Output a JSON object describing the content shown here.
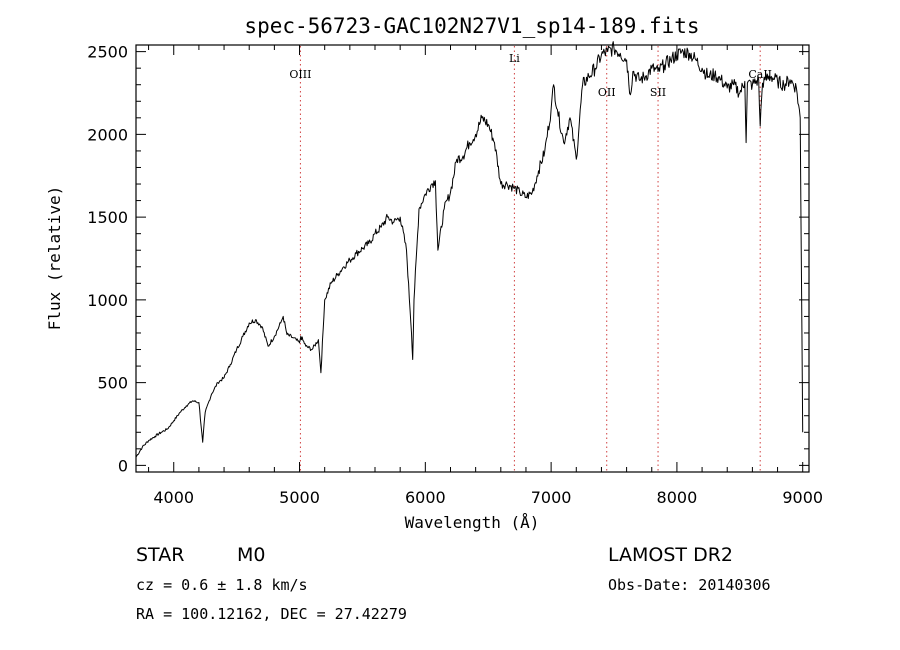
{
  "chart_data": {
    "type": "line",
    "title": "spec-56723-GAC102N27V1_sp14-189.fits",
    "xlabel": "Wavelength (Å)",
    "ylabel": "Flux (relative)",
    "xlim": [
      3700,
      9050
    ],
    "ylim": [
      -40,
      2540
    ],
    "xticks": [
      4000,
      5000,
      6000,
      7000,
      8000,
      9000
    ],
    "yticks": [
      0,
      500,
      1000,
      1500,
      2000,
      2500
    ],
    "grid": false,
    "line_color": "#000000",
    "marker_color": "#d04040",
    "lines": [
      {
        "label": "OIII",
        "x": 5007
      },
      {
        "label": "Li",
        "x": 6708
      },
      {
        "label": "OII",
        "x": 7442
      },
      {
        "label": "SII",
        "x": 7850
      },
      {
        "label": "CaII",
        "x": 8662
      }
    ],
    "series": [
      {
        "x": [
          3700,
          3750,
          3800,
          3850,
          3900,
          3950,
          4000,
          4050,
          4100,
          4150,
          4200,
          4230,
          4250,
          4300,
          4350,
          4400,
          4450,
          4500,
          4550,
          4600,
          4650,
          4700,
          4750,
          4800,
          4850,
          4870,
          4900,
          4950,
          5000,
          5010,
          5050,
          5100,
          5150,
          5170,
          5200,
          5250,
          5300,
          5350,
          5400,
          5450,
          5500,
          5550,
          5600,
          5650,
          5700,
          5750,
          5800,
          5850,
          5890,
          5900,
          5910,
          5950,
          6000,
          6050,
          6080,
          6100,
          6150,
          6200,
          6250,
          6300,
          6350,
          6400,
          6450,
          6500,
          6550,
          6600,
          6650,
          6700,
          6750,
          6800,
          6850,
          6900,
          6950,
          7000,
          7020,
          7050,
          7100,
          7150,
          7200,
          7250,
          7300,
          7350,
          7400,
          7450,
          7500,
          7550,
          7600,
          7630,
          7650,
          7700,
          7750,
          7800,
          7850,
          7900,
          7950,
          8000,
          8050,
          8100,
          8150,
          8200,
          8250,
          8300,
          8350,
          8400,
          8450,
          8500,
          8540,
          8550,
          8560,
          8600,
          8650,
          8662,
          8680,
          8700,
          8750,
          8800,
          8850,
          8900,
          8950,
          8980,
          9000
        ],
        "y": [
          50,
          110,
          150,
          175,
          200,
          220,
          270,
          320,
          360,
          390,
          380,
          140,
          320,
          430,
          500,
          530,
          610,
          700,
          780,
          860,
          880,
          840,
          720,
          780,
          860,
          900,
          790,
          770,
          740,
          780,
          720,
          700,
          760,
          560,
          1000,
          1100,
          1150,
          1200,
          1240,
          1280,
          1310,
          1340,
          1400,
          1440,
          1500,
          1470,
          1500,
          1300,
          800,
          640,
          1000,
          1550,
          1640,
          1700,
          1720,
          1300,
          1550,
          1650,
          1850,
          1870,
          1950,
          2000,
          2100,
          2060,
          1950,
          1700,
          1700,
          1680,
          1650,
          1620,
          1650,
          1780,
          1900,
          2150,
          2300,
          2150,
          1950,
          2100,
          1850,
          2300,
          2350,
          2400,
          2480,
          2500,
          2520,
          2490,
          2450,
          2240,
          2380,
          2330,
          2350,
          2400,
          2380,
          2420,
          2450,
          2480,
          2500,
          2490,
          2450,
          2400,
          2350,
          2360,
          2330,
          2280,
          2300,
          2250,
          2320,
          1950,
          2310,
          2300,
          2330,
          2050,
          2310,
          2330,
          2350,
          2320,
          2300,
          2330,
          2280,
          2100,
          200
        ]
      }
    ]
  },
  "caption": {
    "object_type": "STAR",
    "subclass": "M0",
    "survey": "LAMOST DR2",
    "cz": "cz = 0.6 ± 1.8 km/s",
    "obs_date": "Obs-Date: 20140306",
    "coords": "RA = 100.12162, DEC =  27.42279"
  }
}
